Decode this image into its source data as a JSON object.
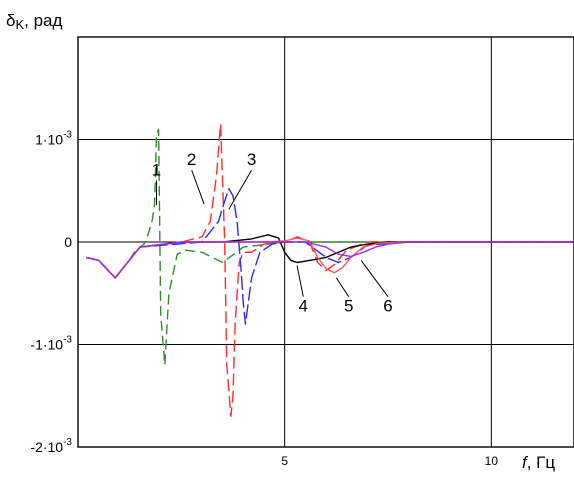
{
  "chart_data": {
    "type": "line",
    "ylabel_symbol": "δ",
    "ylabel_sub": "K",
    "ylabel_unit": ", рад",
    "xlabel_symbol": "f",
    "xlabel_unit": ", Гц",
    "xlim": [
      0,
      12
    ],
    "ylim": [
      -0.002,
      0.002
    ],
    "grid": true,
    "x_ticks": [
      {
        "value": 5,
        "label": "5"
      },
      {
        "value": 10,
        "label": "10"
      }
    ],
    "y_ticks": [
      {
        "value": 0.001,
        "base": "1·10",
        "exp": "-3"
      },
      {
        "value": 0,
        "base": "0",
        "exp": ""
      },
      {
        "value": -0.001,
        "base": "-1·10",
        "exp": "-3"
      },
      {
        "value": -0.002,
        "base": "-2·10",
        "exp": "-3"
      }
    ],
    "series": [
      {
        "name": "1",
        "color": "#2e8b2e",
        "dash": "10,5",
        "x": [
          0.2,
          0.5,
          0.9,
          1.2,
          1.4,
          1.6,
          1.7,
          1.8,
          1.85,
          1.9,
          1.95,
          2.0,
          2.1,
          2.2,
          2.4,
          2.6,
          3.0,
          3.5,
          4.0,
          5.0,
          6.0,
          8.0,
          12.0
        ],
        "y": [
          -0.00015,
          -0.00018,
          -0.00035,
          -0.0002,
          -8e-05,
          -2e-05,
          8e-05,
          0.00022,
          0.00035,
          0.00105,
          0.0011,
          -0.0007,
          -0.0012,
          -0.0005,
          -0.00012,
          -8e-05,
          -0.0001,
          -0.0002,
          -5e-05,
          0.0,
          0.0,
          0.0,
          0.0
        ]
      },
      {
        "name": "2",
        "color": "#ff2a2a",
        "dash": "12,5",
        "x": [
          0.2,
          0.5,
          0.9,
          1.5,
          2.5,
          3.0,
          3.2,
          3.35,
          3.45,
          3.55,
          3.6,
          3.7,
          3.75,
          3.8,
          3.9,
          4.0,
          4.2,
          4.5,
          5.0,
          5.3,
          5.6,
          5.8,
          6.0,
          6.2,
          6.5,
          7.0,
          8.0,
          12.0
        ],
        "y": [
          -0.00015,
          -0.00018,
          -0.00035,
          -5e-05,
          0.0,
          5e-05,
          0.0002,
          0.00065,
          0.00115,
          0.0,
          -0.0012,
          -0.0017,
          -0.0015,
          -0.0008,
          -0.0002,
          -0.0001,
          -0.0001,
          -2e-05,
          0.0,
          5e-05,
          0.0,
          -0.0002,
          -0.00028,
          -0.00022,
          -8e-05,
          0.0,
          0.0,
          0.0
        ]
      },
      {
        "name": "3",
        "color": "#2a2aff",
        "dash": "14,4",
        "x": [
          0.2,
          0.5,
          0.9,
          1.5,
          3.0,
          3.4,
          3.55,
          3.65,
          3.75,
          3.85,
          3.95,
          4.0,
          4.05,
          4.2,
          4.4,
          4.7,
          5.0,
          5.5,
          6.0,
          6.3,
          6.6,
          7.0,
          8.0,
          12.0
        ],
        "y": [
          -0.00015,
          -0.00018,
          -0.00035,
          -5e-05,
          0.0,
          0.0002,
          0.0004,
          0.00052,
          0.00045,
          0.0002,
          -0.0003,
          -0.0006,
          -0.0008,
          -0.00035,
          -0.0001,
          -2e-05,
          0.0,
          0.0,
          -0.00015,
          -0.0002,
          -0.00015,
          -3e-05,
          0.0,
          0.0
        ]
      },
      {
        "name": "4",
        "color": "#000000",
        "dash": "",
        "x": [
          0.2,
          0.5,
          0.9,
          1.5,
          2.5,
          3.5,
          4.2,
          4.6,
          4.85,
          5.0,
          5.15,
          5.3,
          5.6,
          6.0,
          6.3,
          6.6,
          7.0,
          7.5,
          12.0
        ],
        "y": [
          -0.00015,
          -0.00018,
          -0.00035,
          -5e-05,
          0.0,
          0.0,
          3e-05,
          7e-05,
          4e-05,
          -0.0001,
          -0.00018,
          -0.0002,
          -0.00018,
          -0.00015,
          -0.0001,
          -5e-05,
          -2e-05,
          0.0,
          0.0
        ]
      },
      {
        "name": "5",
        "color": "#ff5555",
        "dash": "",
        "x": [
          0.2,
          0.5,
          0.9,
          1.5,
          2.5,
          3.5,
          4.5,
          5.0,
          5.3,
          5.6,
          5.8,
          6.0,
          6.2,
          6.4,
          6.6,
          6.9,
          7.3,
          8.0,
          12.0
        ],
        "y": [
          -0.00015,
          -0.00018,
          -0.00035,
          -5e-05,
          0.0,
          0.0,
          0.0,
          1e-05,
          4e-05,
          1e-05,
          -0.00015,
          -0.00026,
          -0.0003,
          -0.00025,
          -0.00015,
          -5e-05,
          -1e-05,
          0.0,
          0.0
        ]
      },
      {
        "name": "6",
        "color": "#9b30d9",
        "dash": "",
        "x": [
          0.2,
          0.5,
          0.9,
          1.5,
          2.5,
          3.5,
          4.5,
          5.5,
          6.0,
          6.3,
          6.6,
          6.9,
          7.2,
          7.5,
          8.0,
          12.0
        ],
        "y": [
          -0.00015,
          -0.00018,
          -0.00035,
          -5e-05,
          0.0,
          0.0,
          0.0,
          0.0,
          -5e-05,
          -0.00012,
          -0.00014,
          -0.0001,
          -5e-05,
          -2e-05,
          0.0,
          0.0
        ]
      }
    ],
    "curve_labels": [
      {
        "text": "1",
        "x": 1.9,
        "y": 0.00065,
        "tx": 1.9,
        "ty": 0.00036
      },
      {
        "text": "2",
        "x": 2.75,
        "y": 0.00075,
        "tx": 3.05,
        "ty": 0.00037
      },
      {
        "text": "3",
        "x": 4.2,
        "y": 0.00075,
        "tx": 3.65,
        "ty": 0.00032
      },
      {
        "text": "4",
        "x": 5.45,
        "y": -0.00068,
        "tx": 5.3,
        "ty": -0.00023
      },
      {
        "text": "5",
        "x": 6.55,
        "y": -0.00068,
        "tx": 6.25,
        "ty": -0.00035
      },
      {
        "text": "6",
        "x": 7.5,
        "y": -0.00068,
        "tx": 6.85,
        "ty": -0.00018
      }
    ]
  }
}
